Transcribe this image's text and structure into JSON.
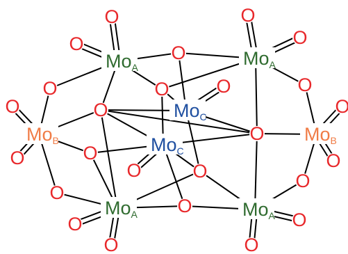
{
  "colors": {
    "oxygen": "#e8282b",
    "mo_a": "#2f6b2f",
    "mo_b": "#f07c46",
    "mo_c": "#1f4fa0",
    "bond": "#000000",
    "background": "#ffffff"
  },
  "molybdenum_atoms": [
    {
      "id": "mo-a-top-left",
      "symbol": "Mo",
      "subscript": "A",
      "role": "a"
    },
    {
      "id": "mo-a-top-right",
      "symbol": "Mo",
      "subscript": "A",
      "role": "a"
    },
    {
      "id": "mo-b-left",
      "symbol": "Mo",
      "subscript": "B",
      "role": "b"
    },
    {
      "id": "mo-c-back",
      "symbol": "Mo",
      "subscript": "C",
      "role": "c"
    },
    {
      "id": "mo-c-front",
      "symbol": "Mo",
      "subscript": "C",
      "role": "c"
    },
    {
      "id": "mo-b-right",
      "symbol": "Mo",
      "subscript": "B",
      "role": "b"
    },
    {
      "id": "mo-a-bottom-left",
      "symbol": "Mo",
      "subscript": "A",
      "role": "a"
    },
    {
      "id": "mo-a-bottom-right",
      "symbol": "Mo",
      "subscript": "A",
      "role": "a"
    }
  ],
  "oxygen_label": "O"
}
